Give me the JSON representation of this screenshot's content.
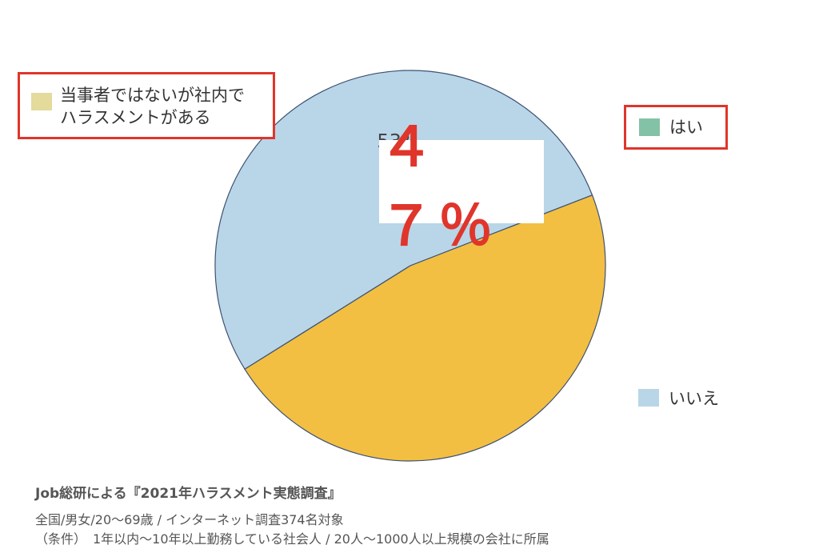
{
  "chart_data": {
    "type": "pie",
    "slices": [
      {
        "label": "いいえ",
        "value": 53,
        "color": "#b8d6e8",
        "data_label": "53%"
      },
      {
        "label": "当事者ではないが社内でハラスメントがある",
        "value": 47,
        "color": "#f2bf43",
        "data_label": "４７％"
      }
    ],
    "legend": [
      {
        "label": "当事者ではないが社内で\nハラスメントがある",
        "line1": "当事者ではないが社内で",
        "line2": "ハラスメントがある",
        "color": "#e3da9b",
        "highlighted": true
      },
      {
        "label": "はい",
        "color": "#84c2a8",
        "highlighted": true
      },
      {
        "label": "いいえ",
        "color": "#b8d6e8",
        "highlighted": false
      }
    ],
    "callout": "４７％"
  },
  "footer": {
    "source": "Job総研による『2021年ハラスメント実態調査』",
    "line1": "全国/男女/20～69歳 / インターネット調査374名対象",
    "line2": "（条件）　1年以内～10年以上勤務している社会人 / 20人～1000人以上規模の会社に所属"
  }
}
